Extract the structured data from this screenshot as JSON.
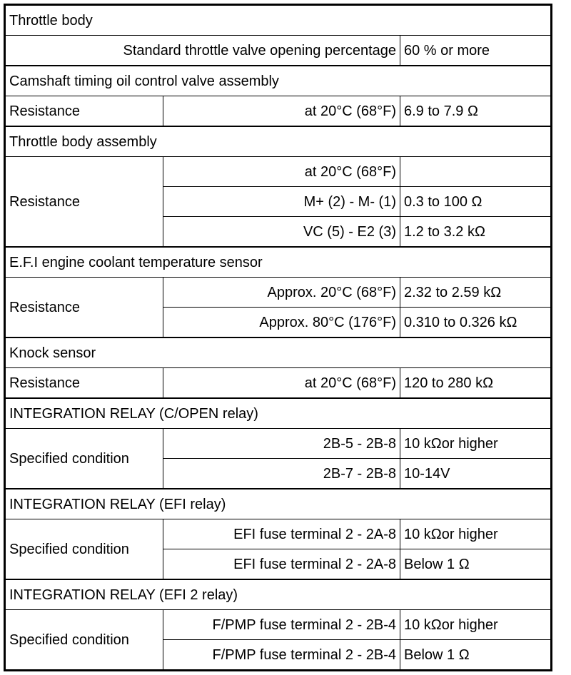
{
  "sections": [
    {
      "title": "Throttle body",
      "label": "",
      "rows": [
        {
          "condition": "Standard throttle valve opening percentage",
          "value": "60 % or more"
        }
      ]
    },
    {
      "title": "Camshaft timing oil control valve assembly",
      "label": "Resistance",
      "rows": [
        {
          "condition": "at 20°C (68°F)",
          "value": "6.9 to 7.9 Ω"
        }
      ]
    },
    {
      "title": "Throttle body assembly",
      "label": "Resistance",
      "rows": [
        {
          "condition": "at 20°C (68°F)",
          "value": ""
        },
        {
          "condition": "M+ (2) - M- (1)",
          "value": "0.3 to 100 Ω"
        },
        {
          "condition": "VC (5) - E2 (3)",
          "value": "1.2 to 3.2 kΩ"
        }
      ]
    },
    {
      "title": "E.F.I engine coolant temperature sensor",
      "label": "Resistance",
      "rows": [
        {
          "condition": "Approx. 20°C (68°F)",
          "value": "2.32 to 2.59 kΩ"
        },
        {
          "condition": "Approx. 80°C (176°F)",
          "value": "0.310 to 0.326 kΩ"
        }
      ]
    },
    {
      "title": "Knock sensor",
      "label": "Resistance",
      "rows": [
        {
          "condition": "at 20°C (68°F)",
          "value": "120 to 280 kΩ"
        }
      ]
    },
    {
      "title": "INTEGRATION RELAY (C/OPEN relay)",
      "label": "Specified condition",
      "rows": [
        {
          "condition": "2B-5 - 2B-8",
          "value": "10 kΩor higher"
        },
        {
          "condition": "2B-7 - 2B-8",
          "value": "10-14V"
        }
      ]
    },
    {
      "title": "INTEGRATION RELAY (EFI relay)",
      "label": "Specified condition",
      "rows": [
        {
          "condition": "EFI fuse terminal 2 - 2A-8",
          "value": "10 kΩor higher"
        },
        {
          "condition": "EFI fuse terminal 2 - 2A-8",
          "value": "Below 1 Ω"
        }
      ]
    },
    {
      "title": "INTEGRATION RELAY (EFI 2 relay)",
      "label": "Specified condition",
      "rows": [
        {
          "condition": "F/PMP fuse terminal 2 - 2B-4",
          "value": "10 kΩor higher"
        },
        {
          "condition": "F/PMP fuse terminal 2 - 2B-4",
          "value": "Below 1 Ω"
        }
      ]
    }
  ]
}
